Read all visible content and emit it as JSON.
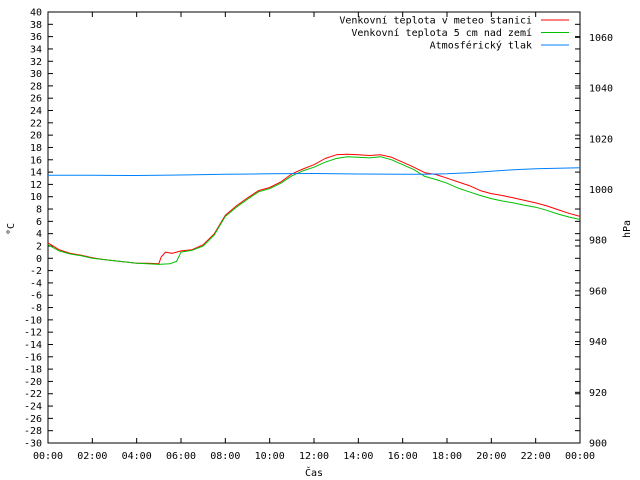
{
  "chart_data": {
    "type": "line",
    "xlabel": "Čas",
    "ylabel": "°C",
    "y2label": "hPa",
    "x_ticks": [
      "00:00",
      "02:00",
      "04:00",
      "06:00",
      "08:00",
      "10:00",
      "12:00",
      "14:00",
      "16:00",
      "18:00",
      "20:00",
      "22:00",
      "00:00"
    ],
    "xlim": [
      0,
      24
    ],
    "ylim": [
      -30,
      40
    ],
    "y_ticks": [
      40,
      38,
      36,
      34,
      32,
      30,
      28,
      26,
      24,
      22,
      20,
      18,
      16,
      14,
      12,
      10,
      8,
      6,
      4,
      2,
      0,
      -2,
      -4,
      -6,
      -8,
      -10,
      -12,
      -14,
      -16,
      -18,
      -20,
      -22,
      -24,
      -26,
      -28,
      -30
    ],
    "y2lim": [
      900,
      1070
    ],
    "y2_ticks": [
      1060,
      1040,
      1020,
      1000,
      980,
      960,
      940,
      920,
      900
    ],
    "grid": false,
    "legend_position": "top-right",
    "series": [
      {
        "name": "Venkovní teplota v meteo stanici",
        "color": "#ff0000",
        "axis": "left",
        "x": [
          0,
          0.5,
          1,
          1.5,
          2,
          2.5,
          3,
          3.5,
          4,
          4.5,
          5,
          5.1,
          5.3,
          5.6,
          6,
          6.5,
          7,
          7.5,
          8,
          8.5,
          9,
          9.5,
          10,
          10.5,
          11,
          11.5,
          12,
          12.5,
          13,
          13.5,
          14,
          14.5,
          15,
          15.5,
          16,
          16.5,
          17,
          17.5,
          18,
          18.5,
          19,
          19.5,
          20,
          20.5,
          21,
          21.5,
          22,
          22.5,
          23,
          23.5,
          24
        ],
        "y": [
          2.5,
          1.4,
          0.8,
          0.5,
          0.1,
          -0.2,
          -0.4,
          -0.6,
          -0.8,
          -0.8,
          -0.9,
          0.2,
          1.0,
          0.8,
          1.2,
          1.4,
          2.2,
          4.0,
          7.0,
          8.5,
          9.8,
          11.0,
          11.5,
          12.4,
          13.7,
          14.5,
          15.2,
          16.2,
          16.8,
          16.9,
          16.8,
          16.7,
          16.8,
          16.4,
          15.6,
          14.8,
          13.9,
          13.6,
          13.0,
          12.4,
          11.8,
          11.0,
          10.5,
          10.2,
          9.8,
          9.4,
          9.0,
          8.5,
          7.9,
          7.3,
          6.8
        ]
      },
      {
        "name": "Venkovní teplota 5 cm nad zemí",
        "color": "#00c000",
        "axis": "left",
        "x": [
          0,
          0.5,
          1,
          1.5,
          2,
          2.5,
          3,
          3.5,
          4,
          4.5,
          5,
          5.5,
          5.8,
          6,
          6.5,
          7,
          7.5,
          8,
          8.5,
          9,
          9.5,
          10,
          10.5,
          11,
          11.5,
          12,
          12.5,
          13,
          13.5,
          14,
          14.5,
          15,
          15.5,
          16,
          16.5,
          17,
          17.5,
          18,
          18.5,
          19,
          19.5,
          20,
          20.5,
          21,
          21.5,
          22,
          22.5,
          23,
          23.5,
          24
        ],
        "y": [
          2.2,
          1.2,
          0.7,
          0.4,
          0.0,
          -0.2,
          -0.4,
          -0.6,
          -0.8,
          -0.9,
          -1.0,
          -0.9,
          -0.5,
          1.0,
          1.3,
          2.0,
          3.8,
          6.8,
          8.3,
          9.6,
          10.8,
          11.3,
          12.2,
          13.4,
          14.2,
          14.8,
          15.6,
          16.2,
          16.5,
          16.4,
          16.3,
          16.5,
          16.0,
          15.2,
          14.4,
          13.3,
          12.8,
          12.2,
          11.4,
          10.8,
          10.2,
          9.7,
          9.3,
          9.0,
          8.6,
          8.3,
          7.8,
          7.2,
          6.7,
          6.3
        ]
      },
      {
        "name": "Atmosférický tlak",
        "color": "#0080ff",
        "axis": "right",
        "x": [
          0,
          2,
          4,
          6,
          8,
          10,
          12,
          14,
          16,
          17,
          18,
          19,
          20,
          21,
          22,
          23,
          24
        ],
        "y": [
          1005.6,
          1005.6,
          1005.5,
          1005.7,
          1006.0,
          1006.2,
          1006.3,
          1006.1,
          1006.0,
          1006.0,
          1006.2,
          1006.6,
          1007.2,
          1007.8,
          1008.2,
          1008.4,
          1008.6
        ]
      }
    ]
  }
}
